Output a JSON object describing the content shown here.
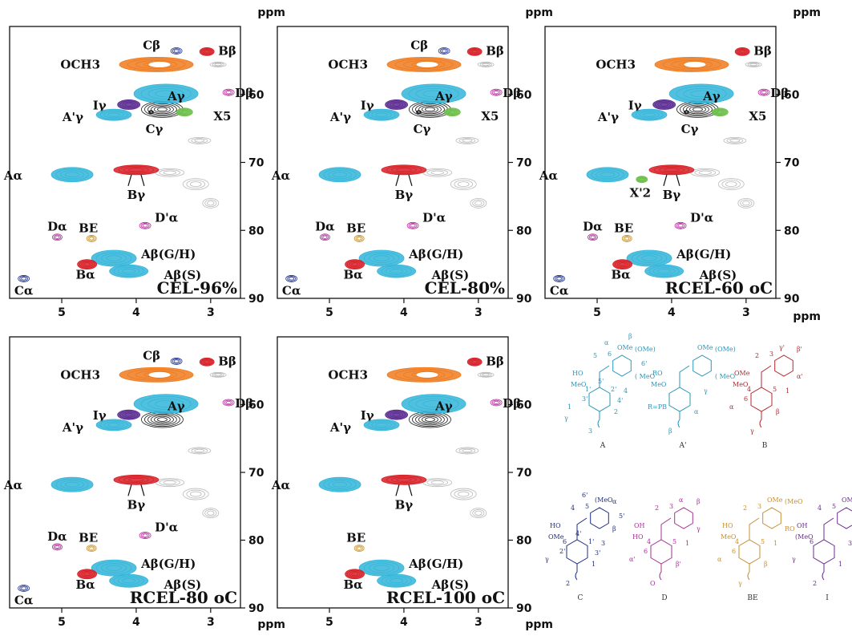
{
  "chart_data": {
    "type": "heatmap",
    "subtype": "2D HSQC NMR spectra (side-chain region)",
    "xlabel": "ppm",
    "ylabel": "ppm",
    "xlim": [
      5.7,
      2.6
    ],
    "ylim": [
      90,
      50
    ],
    "x_ticks": [
      5,
      4,
      3
    ],
    "y_ticks": [
      60,
      70,
      80,
      90
    ],
    "colors": {
      "A": "#33b5d9",
      "A_dark": "#1a7fb0",
      "B": "#d71f27",
      "C": "#1d2f8c",
      "D": "#b4279a",
      "BE": "#c49332",
      "I": "#5a2a90",
      "OCH3": "#ee7a1d",
      "X": "#6cc04a",
      "unassigned": "#b9b9b9",
      "lignin_black": "#1a1a1a"
    },
    "panels": [
      {
        "name": "CEL-96%",
        "cross_peaks": [
          {
            "id": "OCH3",
            "label": "OCH3",
            "x": 3.73,
            "y": 55.6
          },
          {
            "id": "Cb",
            "label": "Cβ",
            "x": 3.46,
            "y": 53.6
          },
          {
            "id": "Bb",
            "label": "Bβ",
            "x": 3.05,
            "y": 53.7
          },
          {
            "id": "Ag",
            "label": "Aγ",
            "x": 3.6,
            "y": 59.9
          },
          {
            "id": "Db",
            "label": "Dβ",
            "x": 2.76,
            "y": 59.7
          },
          {
            "id": "Ig",
            "label": "Iγ",
            "x": 4.1,
            "y": 61.5
          },
          {
            "id": "A2g",
            "label": "A'γ",
            "x": 4.3,
            "y": 63.0
          },
          {
            "id": "Cg",
            "label": "Cγ",
            "x": 3.8,
            "y": 62.6
          },
          {
            "id": "X5",
            "label": "X5",
            "x": 3.35,
            "y": 62.6
          },
          {
            "id": "Aa",
            "label": "Aα",
            "x": 4.86,
            "y": 71.8
          },
          {
            "id": "Bg",
            "label": "Bγ",
            "x": 4.0,
            "y": 71.1
          },
          {
            "id": "Da",
            "label": "Dα",
            "x": 5.06,
            "y": 81.0
          },
          {
            "id": "BE",
            "label": "BE",
            "x": 4.6,
            "y": 81.2
          },
          {
            "id": "D2a",
            "label": "D'α",
            "x": 3.88,
            "y": 79.3
          },
          {
            "id": "AbGH",
            "label": "Aβ(G/H)",
            "x": 4.3,
            "y": 84.1
          },
          {
            "id": "AbS",
            "label": "Aβ(S)",
            "x": 4.1,
            "y": 86.0
          },
          {
            "id": "Ba",
            "label": "Bα",
            "x": 4.66,
            "y": 85.0
          },
          {
            "id": "Ca",
            "label": "Cα",
            "x": 5.51,
            "y": 87.1
          }
        ]
      },
      {
        "name": "CEL-80%",
        "cross_peaks": [
          {
            "id": "OCH3",
            "label": "OCH3",
            "x": 3.73,
            "y": 55.6
          },
          {
            "id": "Cb",
            "label": "Cβ",
            "x": 3.46,
            "y": 53.6
          },
          {
            "id": "Bb",
            "label": "Bβ",
            "x": 3.05,
            "y": 53.7
          },
          {
            "id": "Ag",
            "label": "Aγ",
            "x": 3.6,
            "y": 59.9
          },
          {
            "id": "Db",
            "label": "Dβ",
            "x": 2.76,
            "y": 59.7
          },
          {
            "id": "Ig",
            "label": "Iγ",
            "x": 4.1,
            "y": 61.5
          },
          {
            "id": "A2g",
            "label": "A'γ",
            "x": 4.3,
            "y": 63.0
          },
          {
            "id": "Cg",
            "label": "Cγ",
            "x": 3.8,
            "y": 62.6
          },
          {
            "id": "X5",
            "label": "X5",
            "x": 3.35,
            "y": 62.6
          },
          {
            "id": "Aa",
            "label": "Aα",
            "x": 4.86,
            "y": 71.8
          },
          {
            "id": "Bg",
            "label": "Bγ",
            "x": 4.0,
            "y": 71.1
          },
          {
            "id": "Da",
            "label": "Dα",
            "x": 5.06,
            "y": 81.0
          },
          {
            "id": "BE",
            "label": "BE",
            "x": 4.6,
            "y": 81.2
          },
          {
            "id": "D2a",
            "label": "D'α",
            "x": 3.88,
            "y": 79.3
          },
          {
            "id": "AbGH",
            "label": "Aβ(G/H)",
            "x": 4.3,
            "y": 84.1
          },
          {
            "id": "AbS",
            "label": "Aβ(S)",
            "x": 4.1,
            "y": 86.0
          },
          {
            "id": "Ba",
            "label": "Bα",
            "x": 4.66,
            "y": 85.0
          },
          {
            "id": "Ca",
            "label": "Cα",
            "x": 5.51,
            "y": 87.1
          }
        ]
      },
      {
        "name": "RCEL-60 oC",
        "cross_peaks": [
          {
            "id": "OCH3",
            "label": "OCH3",
            "x": 3.73,
            "y": 55.6
          },
          {
            "id": "Bb",
            "label": "Bβ",
            "x": 3.05,
            "y": 53.7
          },
          {
            "id": "Ag",
            "label": "Aγ",
            "x": 3.6,
            "y": 59.9
          },
          {
            "id": "Db",
            "label": "Dβ",
            "x": 2.76,
            "y": 59.7
          },
          {
            "id": "Ig",
            "label": "Iγ",
            "x": 4.1,
            "y": 61.5
          },
          {
            "id": "A2g",
            "label": "A'γ",
            "x": 4.3,
            "y": 63.0
          },
          {
            "id": "Cg",
            "label": "Cγ",
            "x": 3.8,
            "y": 62.6
          },
          {
            "id": "X5",
            "label": "X5",
            "x": 3.35,
            "y": 62.6
          },
          {
            "id": "Aa",
            "label": "Aα",
            "x": 4.86,
            "y": 71.8
          },
          {
            "id": "X2",
            "label": "X'2",
            "x": 4.4,
            "y": 72.5
          },
          {
            "id": "Bg",
            "label": "Bγ",
            "x": 4.0,
            "y": 71.1
          },
          {
            "id": "Da",
            "label": "Dα",
            "x": 5.06,
            "y": 81.0
          },
          {
            "id": "BE",
            "label": "BE",
            "x": 4.6,
            "y": 81.2
          },
          {
            "id": "D2a",
            "label": "D'α",
            "x": 3.88,
            "y": 79.3
          },
          {
            "id": "AbGH",
            "label": "Aβ(G/H)",
            "x": 4.3,
            "y": 84.1
          },
          {
            "id": "AbS",
            "label": "Aβ(S)",
            "x": 4.1,
            "y": 86.0
          },
          {
            "id": "Ba",
            "label": "Bα",
            "x": 4.66,
            "y": 85.0
          },
          {
            "id": "Ca",
            "label": "Cα",
            "x": 5.51,
            "y": 87.1
          }
        ]
      },
      {
        "name": "RCEL-80 oC",
        "cross_peaks": [
          {
            "id": "OCH3",
            "label": "OCH3",
            "x": 3.73,
            "y": 55.6
          },
          {
            "id": "Cb",
            "label": "Cβ",
            "x": 3.46,
            "y": 53.6
          },
          {
            "id": "Bb",
            "label": "Bβ",
            "x": 3.05,
            "y": 53.7
          },
          {
            "id": "Ag",
            "label": "Aγ",
            "x": 3.6,
            "y": 59.9
          },
          {
            "id": "Db",
            "label": "Dβ",
            "x": 2.76,
            "y": 59.7
          },
          {
            "id": "Ig",
            "label": "Iγ",
            "x": 4.1,
            "y": 61.5
          },
          {
            "id": "A2g",
            "label": "A'γ",
            "x": 4.3,
            "y": 63.0
          },
          {
            "id": "Aa",
            "label": "Aα",
            "x": 4.86,
            "y": 71.8
          },
          {
            "id": "Bg",
            "label": "Bγ",
            "x": 4.0,
            "y": 71.1
          },
          {
            "id": "Da",
            "label": "Dα",
            "x": 5.06,
            "y": 81.0
          },
          {
            "id": "BE",
            "label": "BE",
            "x": 4.6,
            "y": 81.2
          },
          {
            "id": "D2a",
            "label": "D'α",
            "x": 3.88,
            "y": 79.3
          },
          {
            "id": "AbGH",
            "label": "Aβ(G/H)",
            "x": 4.3,
            "y": 84.1
          },
          {
            "id": "AbS",
            "label": "Aβ(S)",
            "x": 4.1,
            "y": 86.0
          },
          {
            "id": "Ba",
            "label": "Bα",
            "x": 4.66,
            "y": 85.0
          },
          {
            "id": "Ca",
            "label": "Cα",
            "x": 5.51,
            "y": 87.1
          }
        ]
      },
      {
        "name": "RCEL-100 oC",
        "cross_peaks": [
          {
            "id": "OCH3",
            "label": "OCH3",
            "x": 3.73,
            "y": 55.6
          },
          {
            "id": "Bb",
            "label": "Bβ",
            "x": 3.05,
            "y": 53.7
          },
          {
            "id": "Ag",
            "label": "Aγ",
            "x": 3.6,
            "y": 59.9
          },
          {
            "id": "Db",
            "label": "Dβ",
            "x": 2.76,
            "y": 59.7
          },
          {
            "id": "Ig",
            "label": "Iγ",
            "x": 4.1,
            "y": 61.5
          },
          {
            "id": "A2g",
            "label": "A'γ",
            "x": 4.3,
            "y": 63.0
          },
          {
            "id": "Aa",
            "label": "Aα",
            "x": 4.86,
            "y": 71.8
          },
          {
            "id": "Bg",
            "label": "Bγ",
            "x": 4.0,
            "y": 71.1
          },
          {
            "id": "BE",
            "label": "BE",
            "x": 4.6,
            "y": 81.2
          },
          {
            "id": "AbGH",
            "label": "Aβ(G/H)",
            "x": 4.3,
            "y": 84.1
          },
          {
            "id": "AbS",
            "label": "Aβ(S)",
            "x": 4.1,
            "y": 86.0
          },
          {
            "id": "Ba",
            "label": "Bα",
            "x": 4.66,
            "y": 85.0
          }
        ]
      }
    ],
    "structures": [
      {
        "name": "A",
        "color": "#2b95b8",
        "atom_labels": [
          "HO",
          "MeO",
          "OMe",
          "(OMe)",
          "( MeO",
          "1",
          "2",
          "3",
          "4",
          "5",
          "6",
          "1'",
          "2'",
          "3'",
          "4'",
          "5'",
          "6'",
          "α",
          "β",
          "γ"
        ]
      },
      {
        "name": "A'",
        "color": "#2b95b8",
        "atom_labels": [
          "RO",
          "MeO",
          "OMe",
          "(OMe)",
          "( MeO",
          "R=PB",
          "α",
          "β",
          "γ"
        ]
      },
      {
        "name": "B",
        "color": "#b5272d",
        "atom_labels": [
          "OMe",
          "MeO",
          "γ'",
          "β'",
          "α'",
          "α",
          "β",
          "γ",
          "1",
          "2",
          "3",
          "4",
          "5",
          "6"
        ]
      },
      {
        "name": "C",
        "color": "#1f2d80",
        "atom_labels": [
          "HO",
          "OMe",
          "(MeO",
          "α",
          "β",
          "γ",
          "1",
          "2",
          "3",
          "4",
          "5",
          "6",
          "1'",
          "2'",
          "3'",
          "4'",
          "5'",
          "6'"
        ]
      },
      {
        "name": "D",
        "color": "#a43392",
        "atom_labels": [
          "OH",
          "HO",
          "α",
          "β",
          "γ",
          "α'",
          "β'",
          "O",
          "1",
          "2",
          "3",
          "4",
          "5",
          "6"
        ]
      },
      {
        "name": "BE",
        "color": "#c39033",
        "atom_labels": [
          "HO",
          "MeO",
          "OMe",
          "(MeO",
          "RO",
          "α",
          "β",
          "γ",
          "1",
          "2",
          "3",
          "4",
          "5",
          "6"
        ]
      },
      {
        "name": "I",
        "color": "#6b2a91",
        "atom_labels": [
          "OH",
          "(MeO",
          "OMe",
          "α",
          "β",
          "γ",
          "1",
          "2",
          "3",
          "4",
          "5",
          "6"
        ]
      }
    ]
  }
}
